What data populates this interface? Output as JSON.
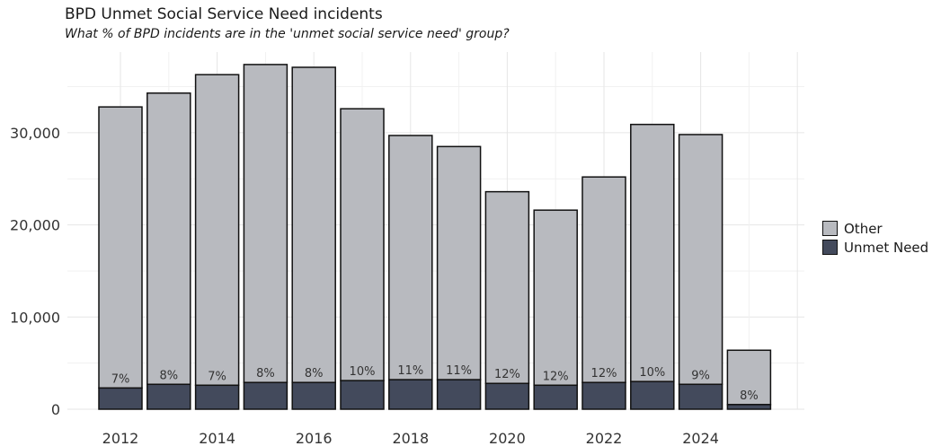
{
  "chart_data": {
    "type": "bar",
    "title": "BPD Unmet Social Service Need incidents",
    "subtitle": "What % of BPD incidents are in the 'unmet social service need' group?",
    "xlabel": "",
    "ylabel": "",
    "categories": [
      "2012",
      "2013",
      "2014",
      "2015",
      "2016",
      "2017",
      "2018",
      "2019",
      "2020",
      "2021",
      "2022",
      "2023",
      "2024",
      "2025"
    ],
    "x_tick_labels": [
      "2012",
      "2014",
      "2016",
      "2018",
      "2020",
      "2022",
      "2024"
    ],
    "y_tick_labels": [
      "0",
      "10,000",
      "20,000",
      "30,000"
    ],
    "y_ticks": [
      0,
      10000,
      20000,
      30000
    ],
    "ylim": [
      0,
      37500
    ],
    "stacked": true,
    "grid": true,
    "legend_position": "right",
    "series": [
      {
        "name": "Unmet Need",
        "color": "#434a5c",
        "values": [
          2300,
          2700,
          2600,
          2900,
          2900,
          3100,
          3200,
          3200,
          2800,
          2600,
          2900,
          3000,
          2700,
          500
        ]
      },
      {
        "name": "Other",
        "color": "#b8babf",
        "values": [
          30500,
          31600,
          33700,
          34500,
          34200,
          29500,
          26500,
          25300,
          20800,
          19000,
          22300,
          27900,
          27100,
          5900
        ]
      }
    ],
    "totals": [
      32800,
      34300,
      36300,
      37400,
      37100,
      32600,
      29700,
      28500,
      23600,
      21600,
      25200,
      30900,
      29800,
      6400
    ],
    "data_labels": [
      "7%",
      "8%",
      "7%",
      "8%",
      "8%",
      "10%",
      "11%",
      "11%",
      "12%",
      "12%",
      "12%",
      "10%",
      "9%",
      "8%"
    ]
  }
}
